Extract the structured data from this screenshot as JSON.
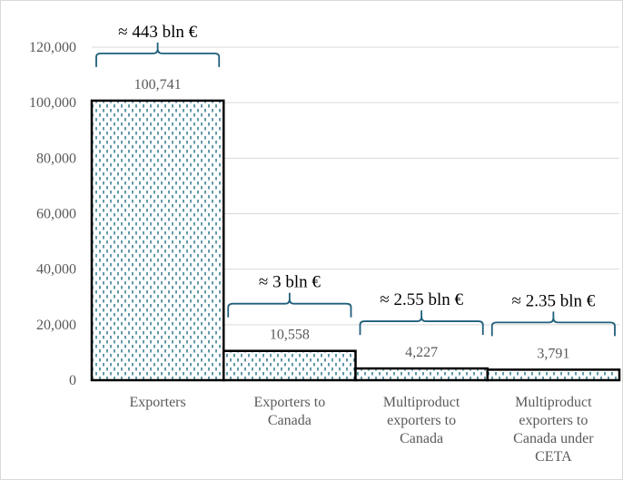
{
  "chart_data": {
    "type": "bar",
    "title": "",
    "xlabel": "",
    "ylabel": "",
    "ylim": [
      0,
      120000
    ],
    "yticks": [
      0,
      20000,
      40000,
      60000,
      80000,
      100000,
      120000
    ],
    "ytick_labels": [
      "0",
      "20,000",
      "40,000",
      "60,000",
      "80,000",
      "100,000",
      "120,000"
    ],
    "grid": true,
    "legend": "none",
    "categories": [
      [
        "Exporters"
      ],
      [
        "Exporters to",
        "Canada"
      ],
      [
        "Multiproduct",
        "exporters to",
        "Canada"
      ],
      [
        "Multiproduct",
        "exporters to",
        "Canada under",
        "CETA"
      ]
    ],
    "values": [
      100741,
      10558,
      4227,
      3791
    ],
    "data_labels": [
      "100,741",
      "10,558",
      "4,227",
      "3,791"
    ],
    "annotations": [
      "≈ 443 bln €",
      "≈ 3 bln €",
      "≈ 2.55 bln €",
      "≈ 2.35 bln €"
    ],
    "colors": {
      "bar_fill": "#ffffff",
      "bar_pattern": "#1f6e86",
      "bar_border": "#000000",
      "bracket": "#1f5f7a",
      "grid": "#d9d9d9",
      "text": "#595959"
    }
  }
}
